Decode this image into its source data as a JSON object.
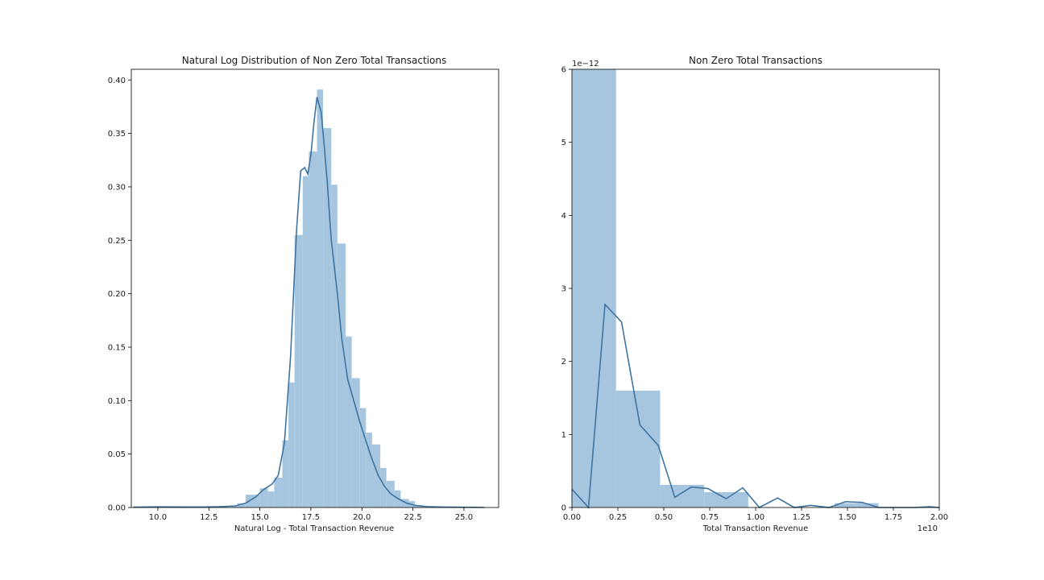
{
  "figure": {
    "background": "#ffffff",
    "bar_color": "#a6c6df",
    "line_color": "#3f73a0"
  },
  "chart_data": [
    {
      "type": "bar",
      "subtype": "histogram-with-kde",
      "title": "Natural Log Distribution of Non Zero Total Transactions",
      "xlabel": "Natural Log - Total Transaction Revenue",
      "ylabel": "",
      "xlim": [
        8.7,
        26.7
      ],
      "ylim": [
        0,
        0.41
      ],
      "x_ticks": [
        10.0,
        12.5,
        15.0,
        17.5,
        20.0,
        22.5,
        25.0
      ],
      "x_tick_labels": [
        "10.0",
        "12.5",
        "15.0",
        "17.5",
        "20.0",
        "22.5",
        "25.0"
      ],
      "y_ticks": [
        0.0,
        0.05,
        0.1,
        0.15,
        0.2,
        0.25,
        0.3,
        0.35,
        0.4
      ],
      "y_tick_labels": [
        "0.00",
        "0.05",
        "0.10",
        "0.15",
        "0.20",
        "0.25",
        "0.30",
        "0.35",
        "0.40"
      ],
      "grid": false,
      "bins": [
        {
          "x0": 8.8,
          "x1": 9.2,
          "value": 0.0003
        },
        {
          "x0": 10.4,
          "x1": 10.8,
          "value": 0.0005
        },
        {
          "x0": 12.8,
          "x1": 13.2,
          "value": 0.0005
        },
        {
          "x0": 13.6,
          "x1": 13.9,
          "value": 0.001
        },
        {
          "x0": 13.9,
          "x1": 14.3,
          "value": 0.004
        },
        {
          "x0": 14.3,
          "x1": 14.6,
          "value": 0.012
        },
        {
          "x0": 14.6,
          "x1": 15.0,
          "value": 0.012
        },
        {
          "x0": 15.0,
          "x1": 15.4,
          "value": 0.018
        },
        {
          "x0": 15.4,
          "x1": 15.7,
          "value": 0.015
        },
        {
          "x0": 15.7,
          "x1": 16.1,
          "value": 0.028
        },
        {
          "x0": 16.1,
          "x1": 16.4,
          "value": 0.063
        },
        {
          "x0": 16.4,
          "x1": 16.7,
          "value": 0.117
        },
        {
          "x0": 16.7,
          "x1": 17.1,
          "value": 0.255
        },
        {
          "x0": 17.1,
          "x1": 17.4,
          "value": 0.31
        },
        {
          "x0": 17.4,
          "x1": 17.8,
          "value": 0.333
        },
        {
          "x0": 17.8,
          "x1": 18.1,
          "value": 0.391
        },
        {
          "x0": 18.1,
          "x1": 18.5,
          "value": 0.355
        },
        {
          "x0": 18.5,
          "x1": 18.8,
          "value": 0.302
        },
        {
          "x0": 18.8,
          "x1": 19.2,
          "value": 0.247
        },
        {
          "x0": 19.2,
          "x1": 19.5,
          "value": 0.16
        },
        {
          "x0": 19.5,
          "x1": 19.9,
          "value": 0.121
        },
        {
          "x0": 19.9,
          "x1": 20.2,
          "value": 0.093
        },
        {
          "x0": 20.2,
          "x1": 20.5,
          "value": 0.07
        },
        {
          "x0": 20.5,
          "x1": 20.9,
          "value": 0.059
        },
        {
          "x0": 20.9,
          "x1": 21.2,
          "value": 0.037
        },
        {
          "x0": 21.2,
          "x1": 21.6,
          "value": 0.025
        },
        {
          "x0": 21.6,
          "x1": 21.9,
          "value": 0.016
        },
        {
          "x0": 21.9,
          "x1": 22.3,
          "value": 0.008
        },
        {
          "x0": 22.3,
          "x1": 22.6,
          "value": 0.006
        },
        {
          "x0": 22.6,
          "x1": 23.0,
          "value": 0.002
        }
      ],
      "kde": {
        "x": [
          8.8,
          10.0,
          12.0,
          13.0,
          13.8,
          14.3,
          14.8,
          15.2,
          15.6,
          15.9,
          16.2,
          16.5,
          16.8,
          17.0,
          17.2,
          17.35,
          17.5,
          17.65,
          17.8,
          18.0,
          18.1,
          18.3,
          18.5,
          18.8,
          19.0,
          19.3,
          19.6,
          19.9,
          20.2,
          20.5,
          20.8,
          21.1,
          21.4,
          21.8,
          22.2,
          22.6,
          23.2,
          24.0,
          25.0,
          26.0
        ],
        "y": [
          0.0003,
          0.0006,
          0.0004,
          0.0007,
          0.0015,
          0.004,
          0.01,
          0.017,
          0.022,
          0.03,
          0.06,
          0.14,
          0.26,
          0.315,
          0.318,
          0.312,
          0.33,
          0.36,
          0.384,
          0.37,
          0.35,
          0.305,
          0.25,
          0.2,
          0.16,
          0.12,
          0.1,
          0.08,
          0.062,
          0.045,
          0.03,
          0.02,
          0.013,
          0.008,
          0.004,
          0.002,
          0.0008,
          0.0004,
          0.0002,
          0.0001
        ]
      }
    },
    {
      "type": "bar",
      "subtype": "histogram-with-kde",
      "title": "Non Zero Total Transactions",
      "xlabel": "Total Transaction Revenue",
      "ylabel": "",
      "x_offset_label": "1e10",
      "y_offset_label": "1e−12",
      "xlim": [
        0.0,
        2.0
      ],
      "ylim": [
        0,
        6
      ],
      "x_ticks": [
        0.0,
        0.25,
        0.5,
        0.75,
        1.0,
        1.25,
        1.5,
        1.75,
        2.0
      ],
      "x_tick_labels": [
        "0.00",
        "0.25",
        "0.50",
        "0.75",
        "1.00",
        "1.25",
        "1.50",
        "1.75",
        "2.00"
      ],
      "y_ticks": [
        0,
        1,
        2,
        3,
        4,
        5,
        6
      ],
      "y_tick_labels": [
        "0",
        "1",
        "2",
        "3",
        "4",
        "5",
        "6"
      ],
      "grid": false,
      "bins": [
        {
          "x0": 0.0,
          "x1": 0.24,
          "value": 6.0
        },
        {
          "x0": 0.24,
          "x1": 0.48,
          "value": 1.6
        },
        {
          "x0": 0.48,
          "x1": 0.72,
          "value": 0.31
        },
        {
          "x0": 0.72,
          "x1": 0.96,
          "value": 0.21
        },
        {
          "x0": 1.43,
          "x1": 1.67,
          "value": 0.06
        }
      ],
      "kde": {
        "x": [
          0.0,
          0.09,
          0.18,
          0.27,
          0.37,
          0.47,
          0.56,
          0.65,
          0.74,
          0.84,
          0.93,
          1.02,
          1.12,
          1.21,
          1.3,
          1.4,
          1.49,
          1.58,
          1.67,
          1.77,
          1.86,
          1.95,
          2.0
        ],
        "y": [
          0.25,
          0.0,
          2.78,
          2.54,
          1.13,
          0.85,
          0.14,
          0.28,
          0.26,
          0.12,
          0.27,
          0.0,
          0.13,
          0.0,
          0.03,
          0.0,
          0.08,
          0.07,
          0.0,
          0.0,
          0.0,
          0.01,
          0.0
        ]
      }
    }
  ]
}
